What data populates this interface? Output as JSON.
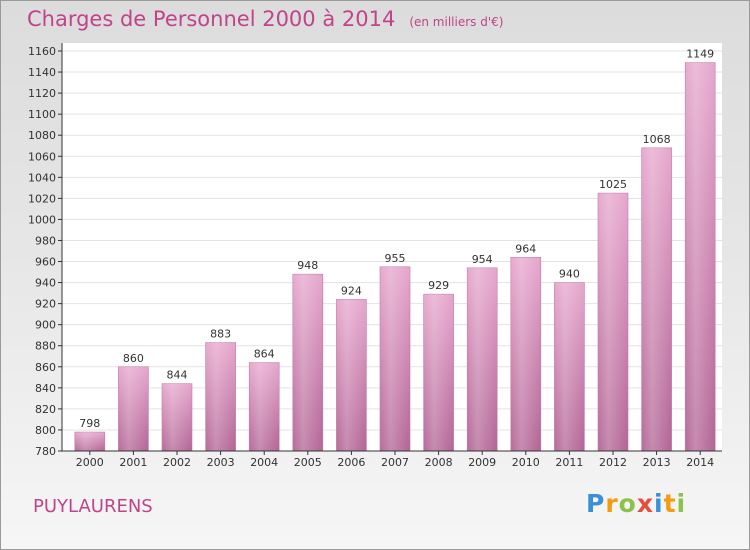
{
  "title": "Charges de Personnel 2000 à 2014",
  "subtitle": "(en milliers d'€)",
  "footer": {
    "name": "PUYLAURENS",
    "logo": [
      "P",
      "r",
      "o",
      "x",
      "i",
      "t",
      "i"
    ],
    "logo_colors": [
      "#3a8fd8",
      "#f39c12",
      "#8bc34a",
      "#e74c3c",
      "#3a8fd8",
      "#f39c12",
      "#8bc34a"
    ]
  },
  "chart_data": {
    "type": "bar",
    "categories": [
      "2000",
      "2001",
      "2002",
      "2003",
      "2004",
      "2005",
      "2006",
      "2007",
      "2008",
      "2009",
      "2010",
      "2011",
      "2012",
      "2013",
      "2014"
    ],
    "values": [
      798,
      860,
      844,
      883,
      864,
      948,
      924,
      955,
      929,
      954,
      964,
      940,
      1025,
      1068,
      1149
    ],
    "value_labels": [
      "798",
      "860",
      "844",
      "883",
      "864",
      "948",
      "924",
      "955",
      "929",
      "954",
      "964",
      "940",
      "1025",
      "1068",
      "1149"
    ],
    "yticks": [
      780,
      800,
      820,
      840,
      860,
      880,
      900,
      920,
      940,
      960,
      980,
      1000,
      1020,
      1040,
      1060,
      1080,
      1100,
      1120,
      1140,
      1160
    ],
    "ylim": [
      780,
      1160
    ],
    "grid": true,
    "bar_color": "#d98fbd",
    "accent_color": "#c0448a"
  }
}
